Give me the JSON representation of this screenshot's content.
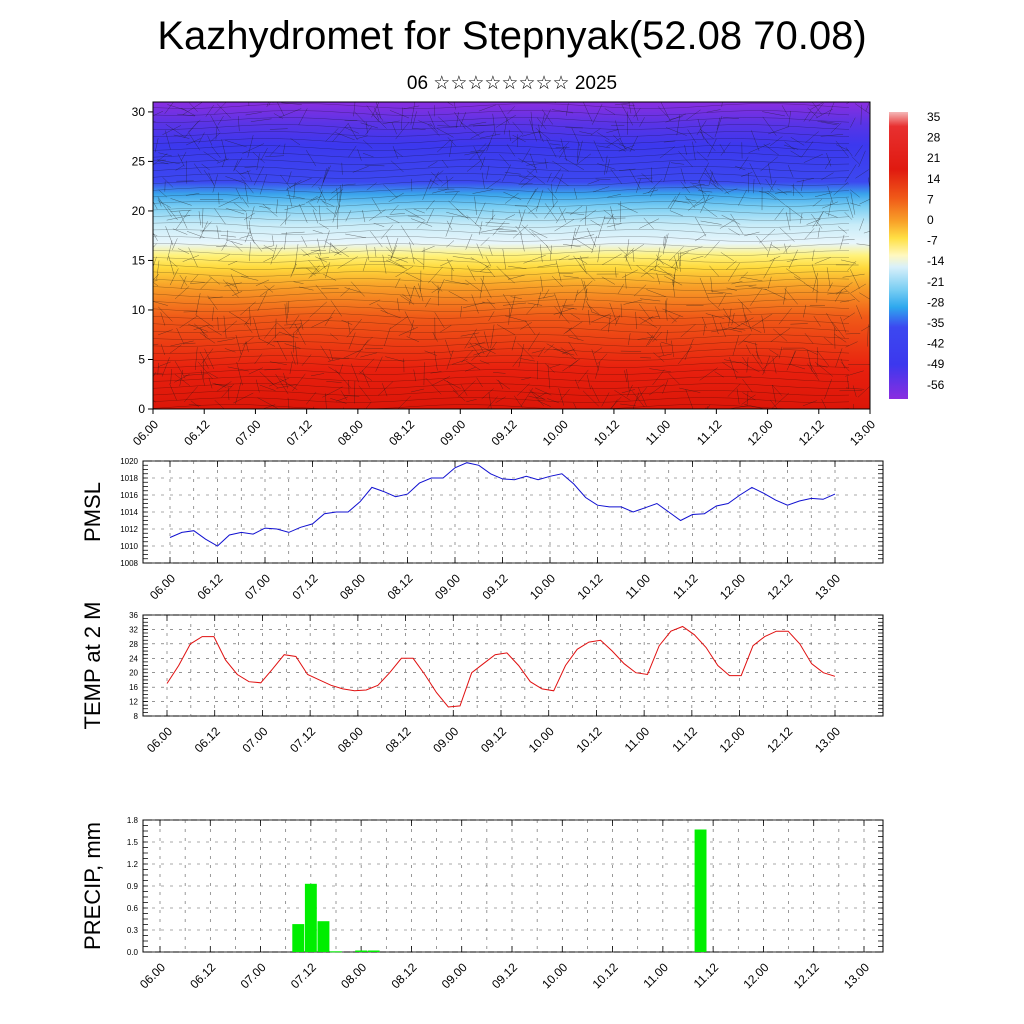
{
  "title": "Kazhydromet for Stepnyak(52.08 70.08)",
  "subtitle": "06 ☆☆☆☆☆☆☆☆ 2025",
  "chart_data": [
    {
      "type": "heatmap",
      "name": "cross-section",
      "x_ticks": [
        "06.00",
        "06.12",
        "07.00",
        "07.12",
        "08.00",
        "08.12",
        "09.00",
        "09.12",
        "10.00",
        "10.12",
        "11.00",
        "11.12",
        "12.00",
        "12.12",
        "13.00"
      ],
      "y_ticks": [
        "0",
        "5",
        "10",
        "15",
        "20",
        "25",
        "30"
      ],
      "ylim": [
        0,
        31
      ],
      "colorbar_labels": [
        "35",
        "28",
        "21",
        "14",
        "7",
        "0",
        "-7",
        "-14",
        "-21",
        "-28",
        "-35",
        "-42",
        "-49",
        "-56"
      ],
      "colors": {
        "warm": "#e21810",
        "orange": "#f5841e",
        "yellow": "#ffe045",
        "light_blue": "#c8ecf8",
        "sky_blue": "#3cb4ee",
        "blue": "#3c3cf0",
        "purple": "#8a2be2"
      }
    },
    {
      "type": "line",
      "name": "pmsl",
      "ylabel": "PMSL",
      "ylim": [
        1008,
        1020
      ],
      "y_ticks": [
        "1008",
        "1010",
        "1012",
        "1014",
        "1016",
        "1018",
        "1020"
      ],
      "x_ticks": [
        "06.00",
        "06.12",
        "07.00",
        "07.12",
        "08.00",
        "08.12",
        "09.00",
        "09.12",
        "10.00",
        "10.12",
        "11.00",
        "11.12",
        "12.00",
        "12.12",
        "13.00"
      ],
      "color": "#1010d0",
      "values": [
        1011,
        1011.6,
        1011.8,
        1010.8,
        1010,
        1011.3,
        1011.6,
        1011.4,
        1012.1,
        1012,
        1011.6,
        1012.2,
        1012.6,
        1013.8,
        1014,
        1014,
        1015.2,
        1016.9,
        1016.4,
        1015.8,
        1016.1,
        1017.4,
        1018,
        1018,
        1019.2,
        1019.8,
        1019.5,
        1018.5,
        1017.9,
        1017.8,
        1018.2,
        1017.8,
        1018.2,
        1018.5,
        1017.3,
        1015.7,
        1014.8,
        1014.6,
        1014.6,
        1014,
        1014.5,
        1015,
        1014,
        1013,
        1013.7,
        1013.8,
        1014.7,
        1015,
        1016,
        1016.9,
        1016.2,
        1015.4,
        1014.8,
        1015.3,
        1015.6,
        1015.5,
        1016.1
      ]
    },
    {
      "type": "line",
      "name": "temp2m",
      "ylabel": "TEMP at 2 M",
      "ylim": [
        8,
        36
      ],
      "y_ticks": [
        "8",
        "12",
        "16",
        "20",
        "24",
        "28",
        "32",
        "36"
      ],
      "x_ticks": [
        "06.00",
        "06.12",
        "07.00",
        "07.12",
        "08.00",
        "08.12",
        "09.00",
        "09.12",
        "10.00",
        "10.12",
        "11.00",
        "11.12",
        "12.00",
        "12.12",
        "13.00"
      ],
      "color": "#e01010",
      "values": [
        17,
        22,
        28,
        30,
        30,
        23.5,
        19.5,
        17.5,
        17.2,
        21,
        25,
        24.5,
        19.5,
        18,
        16.5,
        15.5,
        15,
        15.2,
        16.5,
        20,
        24,
        24,
        19.5,
        14.5,
        10.5,
        10.8,
        20,
        22.5,
        25,
        25.5,
        22,
        17.5,
        15.5,
        15,
        22,
        26.5,
        28.5,
        29,
        26,
        22.5,
        20,
        19.5,
        27.5,
        31.5,
        32.8,
        30.5,
        27,
        22,
        19.2,
        19.2,
        27.5,
        30,
        31.5,
        31.5,
        28,
        22.5,
        20,
        19
      ]
    },
    {
      "type": "bar",
      "name": "precip",
      "ylabel": "PRECIP, mm",
      "ylim": [
        0,
        1.8
      ],
      "y_ticks": [
        "0.0",
        "0.3",
        "0.6",
        "0.9",
        "1.2",
        "1.5",
        "1.8"
      ],
      "x_ticks": [
        "06.00",
        "06.12",
        "07.00",
        "07.12",
        "08.00",
        "08.12",
        "09.00",
        "09.12",
        "10.00",
        "10.12",
        "11.00",
        "11.12",
        "12.00",
        "12.12",
        "13.00"
      ],
      "color": "#00ee00",
      "bars": [
        {
          "x_hours": 33,
          "value": 0.38
        },
        {
          "x_hours": 36,
          "value": 0.93
        },
        {
          "x_hours": 39,
          "value": 0.42
        },
        {
          "x_hours": 42,
          "value": 0.01
        },
        {
          "x_hours": 48,
          "value": 0.02
        },
        {
          "x_hours": 51,
          "value": 0.02
        },
        {
          "x_hours": 129,
          "value": 1.67
        }
      ]
    }
  ]
}
